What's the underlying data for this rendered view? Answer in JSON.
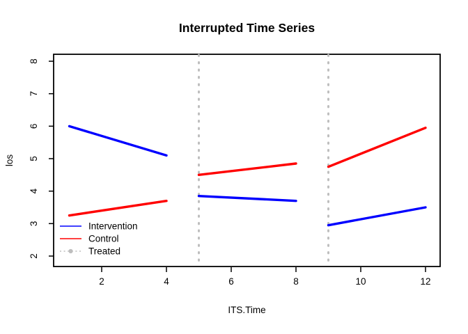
{
  "chart_data": {
    "type": "line",
    "title": "Interrupted Time Series",
    "xlabel": "ITS.Time",
    "ylabel": "los",
    "xlim": [
      1,
      12
    ],
    "ylim": [
      2,
      8
    ],
    "x_ticks": [
      2,
      4,
      6,
      8,
      10,
      12
    ],
    "y_ticks": [
      2,
      3,
      4,
      5,
      6,
      7,
      8
    ],
    "grid": false,
    "box": true,
    "interruptions_x": [
      5,
      9
    ],
    "interruption_style": {
      "color": "#BEBEBE",
      "line": "dotted",
      "width": 3
    },
    "series": [
      {
        "name": "Intervention",
        "color": "#0000FF",
        "line": "solid",
        "width": 3,
        "segments": [
          {
            "x": [
              1,
              4
            ],
            "y": [
              6.0,
              5.1
            ]
          },
          {
            "x": [
              5,
              8
            ],
            "y": [
              3.85,
              3.7
            ]
          },
          {
            "x": [
              9,
              12
            ],
            "y": [
              2.95,
              3.5
            ]
          }
        ]
      },
      {
        "name": "Control",
        "color": "#FF0000",
        "line": "solid",
        "width": 3,
        "segments": [
          {
            "x": [
              1,
              4
            ],
            "y": [
              3.25,
              3.7
            ]
          },
          {
            "x": [
              5,
              8
            ],
            "y": [
              4.5,
              4.85
            ]
          },
          {
            "x": [
              9,
              12
            ],
            "y": [
              4.75,
              5.95
            ]
          }
        ]
      }
    ],
    "legend": {
      "position": "bottom-left-inside",
      "entries": [
        {
          "label": "Intervention",
          "color": "#0000FF",
          "key": "solid-line"
        },
        {
          "label": "Control",
          "color": "#FF0000",
          "key": "solid-line"
        },
        {
          "label": "Treated",
          "color": "#BEBEBE",
          "key": "dotted-line-with-point"
        }
      ]
    }
  },
  "colors": {
    "background": "#FFFFFF",
    "axis": "#000000",
    "muted_gray": "#BEBEBE"
  }
}
